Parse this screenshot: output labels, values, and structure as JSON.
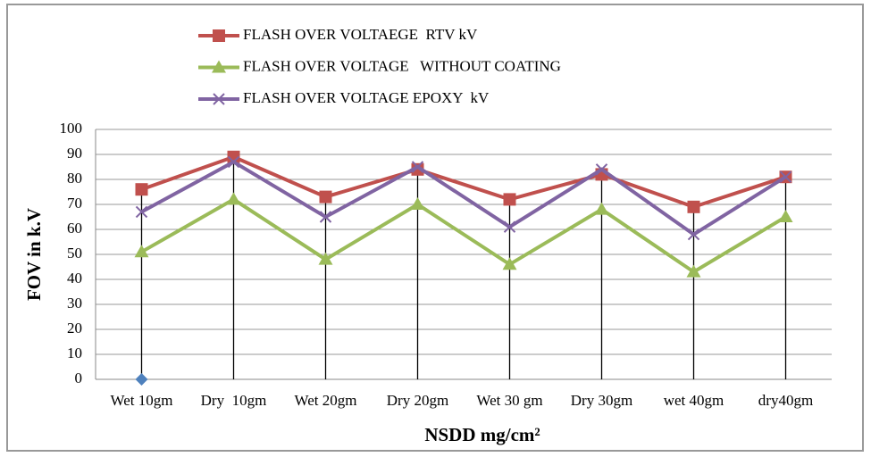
{
  "chart_data": {
    "type": "line",
    "x_label": "NSDD mg/cm²",
    "y_label": "FOV in k.V",
    "categories": [
      "Wet 10gm",
      "Dry  10gm",
      "Wet 20gm",
      "Dry 20gm",
      "Wet 30 gm",
      "Dry 30gm",
      "wet 40gm",
      "dry40gm"
    ],
    "series": [
      {
        "name": "FLASH OVER VOLTAEGE  RTV kV",
        "color": "#c0504d",
        "marker": "square",
        "values": [
          76,
          89,
          73,
          84,
          72,
          82,
          69,
          81
        ]
      },
      {
        "name": "FLASH OVER VOLTAGE   WITHOUT COATING",
        "color": "#9bbb59",
        "marker": "triangle",
        "values": [
          51,
          72,
          48,
          70,
          46,
          68,
          43,
          65
        ]
      },
      {
        "name": "FLASH OVER VOLTAGE EPOXY  kV",
        "color": "#8064a2",
        "marker": "x",
        "values": [
          67,
          87,
          65,
          85,
          61,
          84,
          58,
          81
        ]
      },
      {
        "color": "#4f81bd",
        "marker": "diamond",
        "values": [
          0,
          null,
          null,
          null,
          null,
          null,
          null,
          null
        ]
      }
    ],
    "ylim": [
      0,
      100
    ],
    "yticks": [
      0,
      10,
      20,
      30,
      40,
      50,
      60,
      70,
      80,
      90,
      100
    ],
    "grid": true,
    "drop_lines": true,
    "legend": "top"
  }
}
